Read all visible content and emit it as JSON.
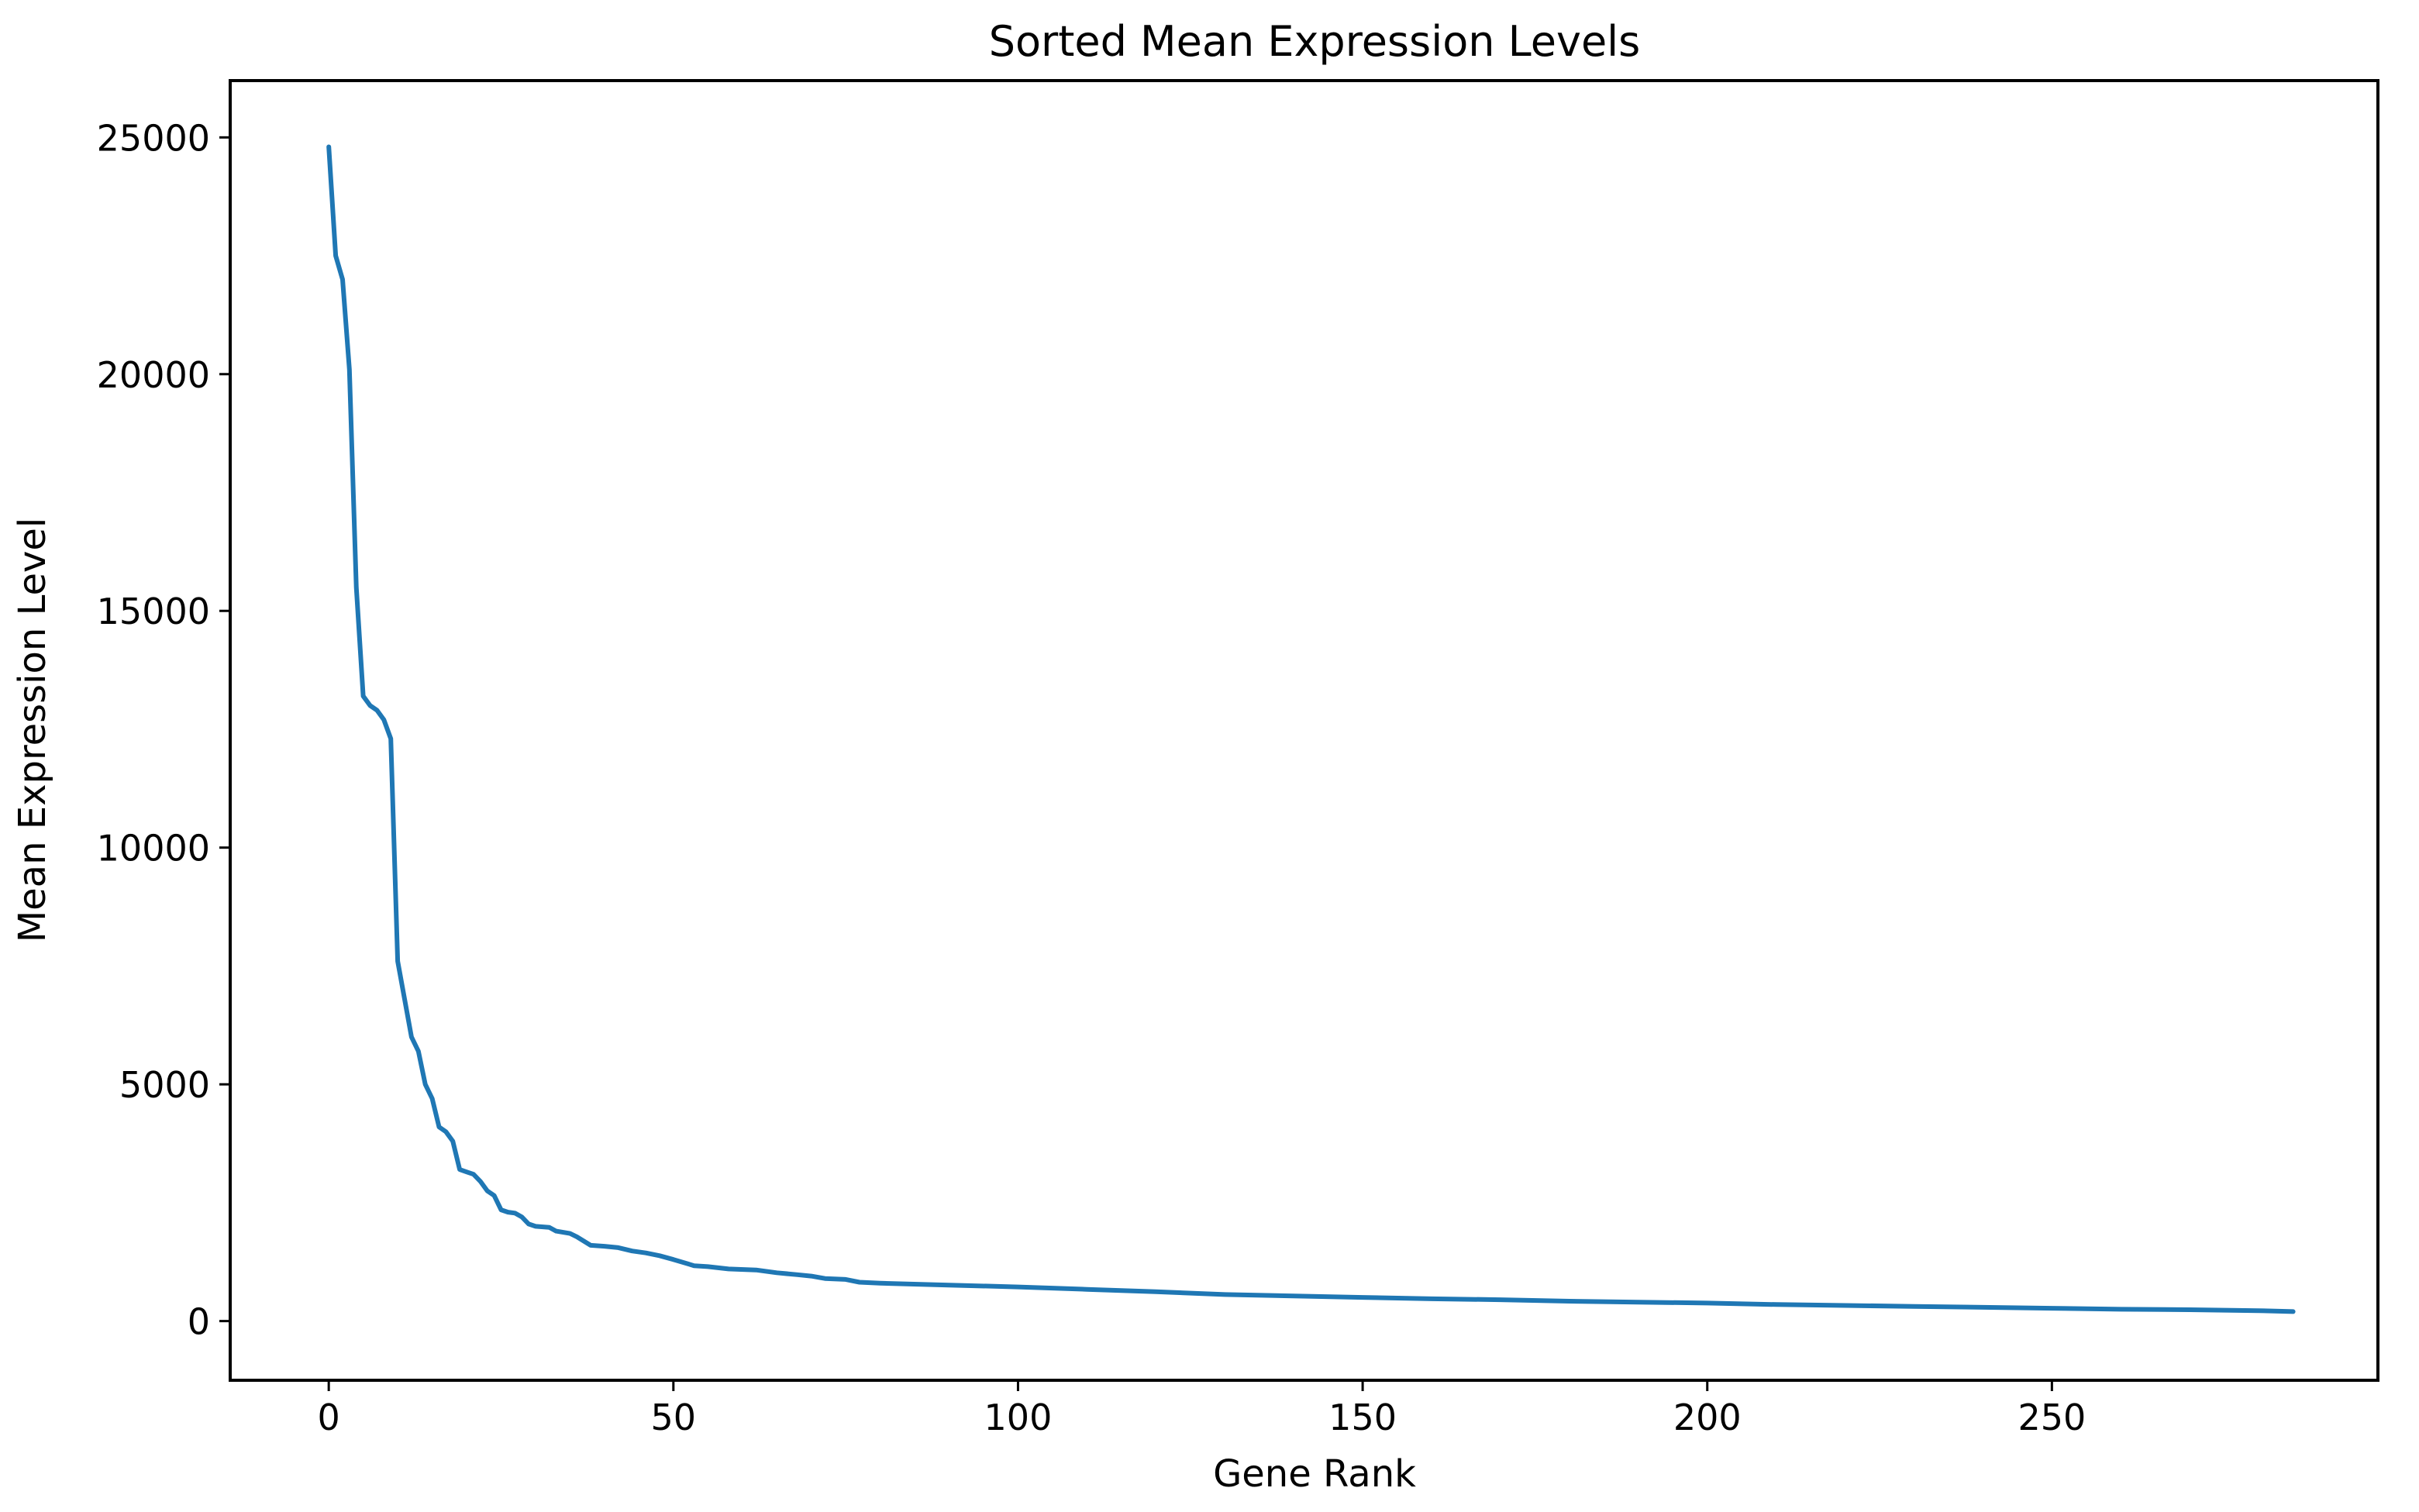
{
  "chart_data": {
    "type": "line",
    "title": "Sorted Mean Expression Levels",
    "xlabel": "Gene Rank",
    "ylabel": "Mean Expression Level",
    "xlim": [
      -14.3,
      297.3
    ],
    "ylim": [
      -1250,
      26200
    ],
    "xticks": [
      0,
      50,
      100,
      150,
      200,
      250
    ],
    "yticks": [
      0,
      5000,
      10000,
      15000,
      20000,
      25000
    ],
    "grid": false,
    "legend": "none",
    "series": [
      {
        "name": "mean expression",
        "color": "#1f77b4",
        "points": [
          [
            0,
            24800
          ],
          [
            1,
            22500
          ],
          [
            2,
            22000
          ],
          [
            3,
            20100
          ],
          [
            4,
            15500
          ],
          [
            5,
            13200
          ],
          [
            6,
            13000
          ],
          [
            7,
            12900
          ],
          [
            8,
            12700
          ],
          [
            9,
            12300
          ],
          [
            10,
            7600
          ],
          [
            11,
            6800
          ],
          [
            12,
            6000
          ],
          [
            13,
            5700
          ],
          [
            14,
            5000
          ],
          [
            15,
            4700
          ],
          [
            16,
            4100
          ],
          [
            17,
            4000
          ],
          [
            18,
            3800
          ],
          [
            19,
            3200
          ],
          [
            20,
            3150
          ],
          [
            21,
            3100
          ],
          [
            22,
            2950
          ],
          [
            23,
            2750
          ],
          [
            24,
            2650
          ],
          [
            25,
            2350
          ],
          [
            26,
            2300
          ],
          [
            27,
            2280
          ],
          [
            28,
            2200
          ],
          [
            29,
            2050
          ],
          [
            30,
            2000
          ],
          [
            32,
            1980
          ],
          [
            33,
            1900
          ],
          [
            35,
            1850
          ],
          [
            36,
            1780
          ],
          [
            38,
            1600
          ],
          [
            40,
            1580
          ],
          [
            42,
            1550
          ],
          [
            44,
            1480
          ],
          [
            46,
            1440
          ],
          [
            48,
            1380
          ],
          [
            50,
            1300
          ],
          [
            53,
            1170
          ],
          [
            55,
            1150
          ],
          [
            58,
            1100
          ],
          [
            62,
            1080
          ],
          [
            65,
            1020
          ],
          [
            68,
            980
          ],
          [
            70,
            950
          ],
          [
            72,
            900
          ],
          [
            75,
            880
          ],
          [
            77,
            820
          ],
          [
            80,
            800
          ],
          [
            90,
            760
          ],
          [
            100,
            720
          ],
          [
            110,
            670
          ],
          [
            120,
            620
          ],
          [
            130,
            560
          ],
          [
            140,
            530
          ],
          [
            150,
            500
          ],
          [
            160,
            470
          ],
          [
            170,
            450
          ],
          [
            180,
            420
          ],
          [
            190,
            400
          ],
          [
            200,
            380
          ],
          [
            210,
            350
          ],
          [
            220,
            330
          ],
          [
            230,
            310
          ],
          [
            240,
            290
          ],
          [
            250,
            270
          ],
          [
            260,
            250
          ],
          [
            270,
            240
          ],
          [
            280,
            220
          ],
          [
            285,
            200
          ]
        ]
      }
    ]
  }
}
